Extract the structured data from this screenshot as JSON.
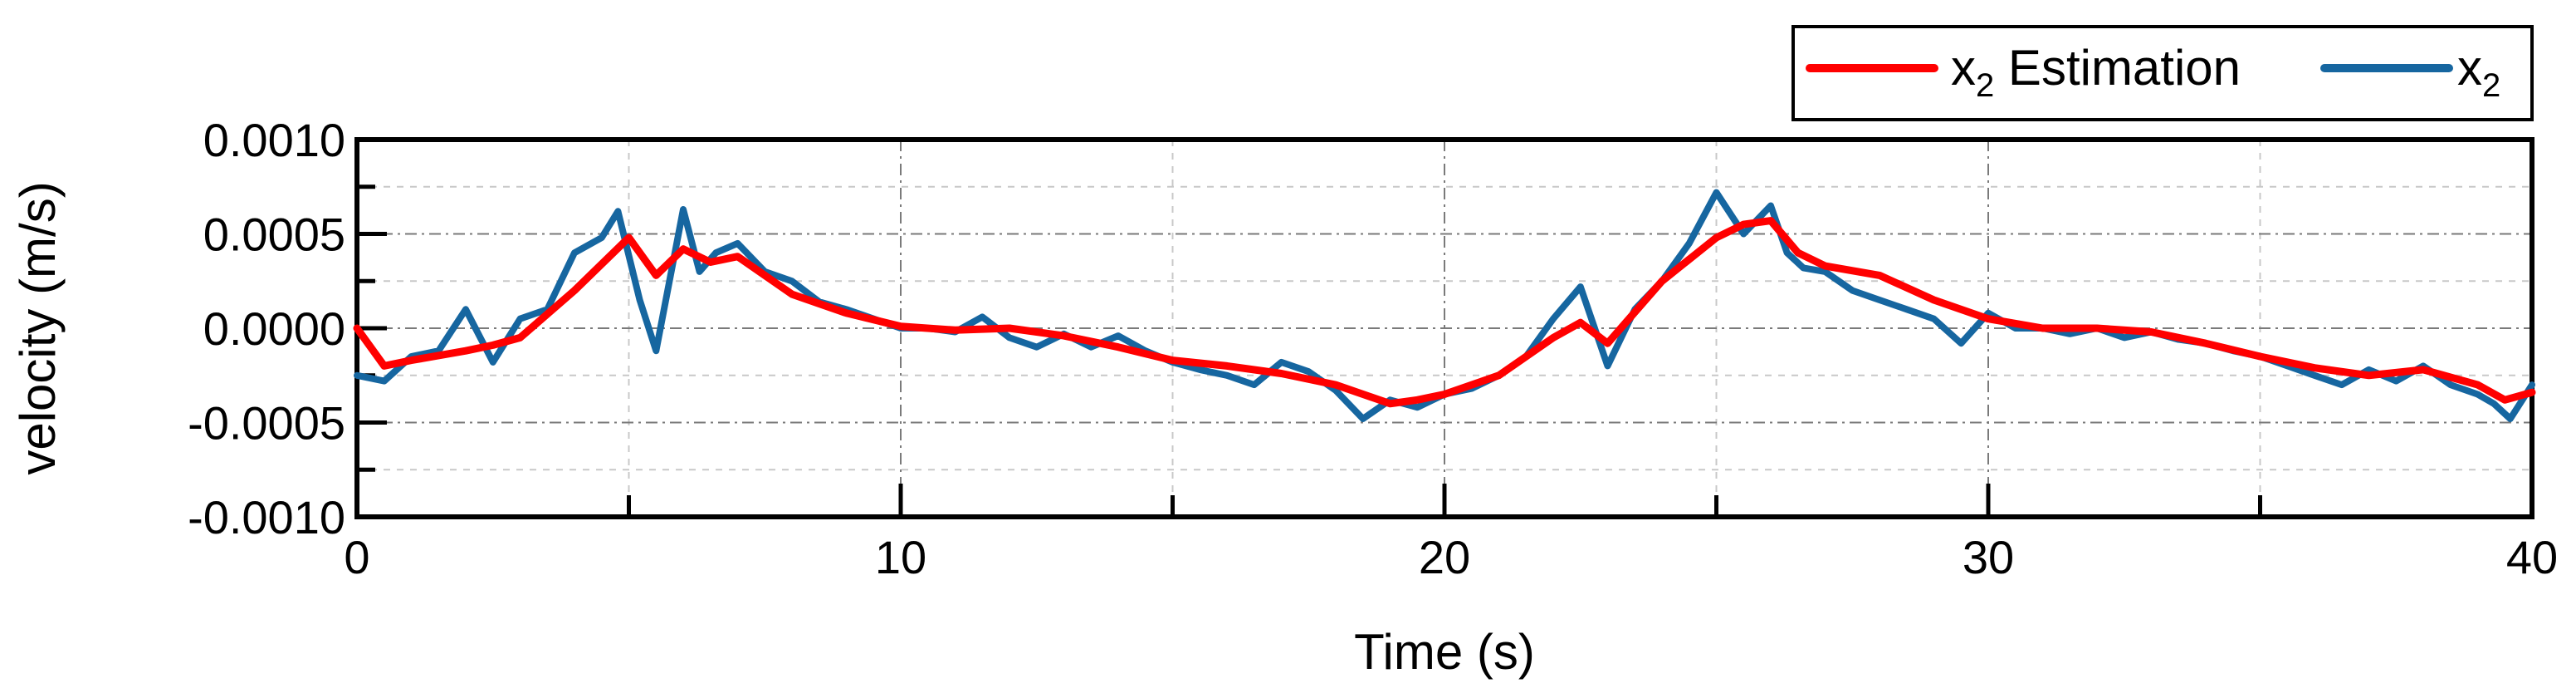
{
  "chart_data": {
    "type": "line",
    "title": "",
    "xlabel": "Time (s)",
    "ylabel": "velocity (m/s)",
    "xlim": [
      0,
      40
    ],
    "ylim": [
      -0.001,
      0.001
    ],
    "x_ticks": [
      0,
      10,
      20,
      30,
      40
    ],
    "x_tick_labels": [
      "0",
      "10",
      "20",
      "30",
      "40"
    ],
    "y_ticks": [
      -0.001,
      -0.0005,
      0.0,
      0.0005,
      0.001
    ],
    "y_tick_labels": [
      "-0.0010",
      "-0.0005",
      "0.0000",
      "0.0005",
      "0.0010"
    ],
    "grid": true,
    "legend_position": "top-right, above plot",
    "series": [
      {
        "name_main": "x",
        "name_sub": "2",
        "name_suffix": " Estimation",
        "color": "#ff0000",
        "x": [
          0,
          0.5,
          1,
          2,
          2.5,
          3,
          4,
          5,
          5.5,
          6,
          6.5,
          7,
          8,
          9,
          10,
          11,
          12,
          13,
          14,
          15,
          16,
          17,
          18,
          19,
          19.5,
          20,
          21,
          22,
          22.5,
          23,
          24,
          25,
          25.5,
          26,
          26.5,
          27,
          28,
          29,
          30,
          31,
          32,
          33,
          34,
          35,
          36,
          37,
          38,
          39,
          39.5,
          40
        ],
        "y": [
          0.0,
          -0.0002,
          -0.00017,
          -0.00012,
          -9e-05,
          -5e-05,
          0.0002,
          0.00048,
          0.00028,
          0.00042,
          0.00035,
          0.00038,
          0.00018,
          8e-05,
          1e-05,
          -1e-05,
          0.0,
          -4e-05,
          -0.0001,
          -0.00017,
          -0.0002,
          -0.00024,
          -0.0003,
          -0.0004,
          -0.00038,
          -0.00035,
          -0.00025,
          -5e-05,
          3e-05,
          -8e-05,
          0.00025,
          0.00048,
          0.00055,
          0.00057,
          0.0004,
          0.00033,
          0.00028,
          0.00015,
          5e-05,
          0.0,
          0.0,
          -2e-05,
          -8e-05,
          -0.00015,
          -0.00021,
          -0.00025,
          -0.00022,
          -0.0003,
          -0.00038,
          -0.00034
        ]
      },
      {
        "name_main": "x",
        "name_sub": "2",
        "name_suffix": "",
        "color": "#1666a0",
        "x": [
          0,
          0.5,
          1,
          1.5,
          2,
          2.5,
          3,
          3.5,
          4,
          4.5,
          4.8,
          5.2,
          5.5,
          6,
          6.3,
          6.6,
          7,
          7.5,
          8,
          8.5,
          9,
          9.5,
          10,
          10.5,
          11,
          11.5,
          12,
          12.5,
          13,
          13.5,
          14,
          14.5,
          15,
          15.5,
          16,
          16.5,
          17,
          17.5,
          18,
          18.5,
          19,
          19.5,
          20,
          20.5,
          21,
          21.5,
          22,
          22.5,
          23,
          23.5,
          24,
          24.5,
          25,
          25.5,
          26,
          26.3,
          26.6,
          27,
          27.5,
          28,
          28.5,
          29,
          29.5,
          30,
          30.5,
          31,
          31.5,
          32,
          32.5,
          33,
          33.5,
          34,
          34.5,
          35,
          35.5,
          36,
          36.5,
          37,
          37.5,
          38,
          38.5,
          39,
          39.3,
          39.6,
          40
        ],
        "y": [
          -0.00025,
          -0.00028,
          -0.00015,
          -0.00012,
          0.0001,
          -0.00018,
          5e-05,
          0.0001,
          0.0004,
          0.00048,
          0.00062,
          0.00015,
          -0.00012,
          0.00063,
          0.0003,
          0.0004,
          0.00045,
          0.0003,
          0.00025,
          0.00014,
          0.0001,
          5e-05,
          0.0,
          0.0,
          -2e-05,
          6e-05,
          -5e-05,
          -0.0001,
          -3e-05,
          -0.0001,
          -4e-05,
          -0.00012,
          -0.00018,
          -0.00022,
          -0.00025,
          -0.0003,
          -0.00018,
          -0.00023,
          -0.00033,
          -0.00048,
          -0.00038,
          -0.00042,
          -0.00035,
          -0.00032,
          -0.00025,
          -0.00015,
          5e-05,
          0.00022,
          -0.0002,
          0.0001,
          0.00025,
          0.00045,
          0.00072,
          0.0005,
          0.00065,
          0.0004,
          0.00032,
          0.0003,
          0.0002,
          0.00015,
          0.0001,
          5e-05,
          -8e-05,
          8e-05,
          0.0,
          0.0,
          -3e-05,
          0.0,
          -5e-05,
          -2e-05,
          -6e-05,
          -8e-05,
          -0.00012,
          -0.00015,
          -0.0002,
          -0.00025,
          -0.0003,
          -0.00022,
          -0.00028,
          -0.0002,
          -0.0003,
          -0.00035,
          -0.0004,
          -0.00048,
          -0.0003
        ]
      }
    ]
  }
}
